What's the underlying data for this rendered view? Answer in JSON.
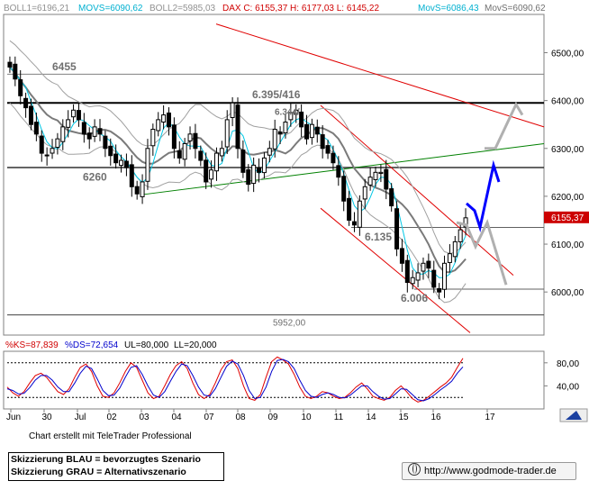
{
  "header": {
    "boll1": "BOLL1=6196,21",
    "movs1": "MOVS=6090,62",
    "boll2": "BOLL2=5985,03",
    "dax": "DAX C: 6155,37 H: 6177,03 L: 6145,22",
    "movs_s": "MovS=6086,43",
    "movs2": "MovS=6090,62"
  },
  "annotations": {
    "level_6455": "6455",
    "level_6395": "6.395/416",
    "level_6260": "6260",
    "level_6135": "6.135",
    "level_6006": "6.006",
    "level_5952": "5952,00",
    "obscured_label": "6.344/"
  },
  "price_tag": "6155,37",
  "oscillator_header": {
    "ks": "%KS=87,839",
    "ds": "%DS=72,654",
    "ul": "UL=80,000",
    "ll": "LL=20,000"
  },
  "footer": {
    "credit": "Chart erstellt mit TeleTrader Professional",
    "legend_line1": "Skizzierung BLAU = bevorzugtes Szenario",
    "legend_line2": "Skizzierung GRAU = Alternativszenario",
    "url": "http://www.godmode-trader.de"
  },
  "colors": {
    "candle": "#000000",
    "bollinger": "#a0a0a0",
    "movs_grey": "#7a7a7a",
    "movs_cyan": "#00c8e6",
    "support_line": "#008000",
    "channel": "#e00000",
    "scenario_blue": "#0000ff",
    "scenario_grey": "#b0b0b0",
    "ks_line": "#e00000",
    "ds_line": "#0000cc"
  },
  "chart_data": [
    {
      "type": "candlestick",
      "title": "DAX",
      "ylim": [
        5910,
        6580
      ],
      "yticks": [
        6000,
        6100,
        6200,
        6300,
        6400,
        6500
      ],
      "ytick_labels": [
        "6000,00",
        "6100,00",
        "6200,00",
        "6300,00",
        "6400,00",
        "6500,00"
      ],
      "xtick_labels": [
        "Jun",
        "30",
        "Jul",
        "02",
        "03",
        "04",
        "07",
        "08",
        "09",
        "10",
        "11",
        "14",
        "15",
        "16",
        "17"
      ],
      "horizontal_levels": [
        6455,
        6395,
        6260,
        6135,
        6006,
        5952
      ],
      "close": [
        6470,
        6445,
        6410,
        6385,
        6350,
        6330,
        6290,
        6285,
        6300,
        6320,
        6345,
        6360,
        6380,
        6360,
        6330,
        6320,
        6345,
        6330,
        6300,
        6285,
        6270,
        6275,
        6260,
        6220,
        6205,
        6230,
        6300,
        6340,
        6360,
        6370,
        6345,
        6300,
        6280,
        6310,
        6330,
        6300,
        6275,
        6230,
        6255,
        6290,
        6300,
        6360,
        6395,
        6300,
        6250,
        6225,
        6265,
        6250,
        6280,
        6300,
        6340,
        6330,
        6355,
        6375,
        6380,
        6345,
        6320,
        6350,
        6330,
        6300,
        6290,
        6270,
        6240,
        6190,
        6150,
        6140,
        6190,
        6220,
        6240,
        6250,
        6250,
        6215,
        6180,
        6090,
        6060,
        6020,
        6030,
        6040,
        6060,
        6050,
        6010,
        6000,
        6060,
        6080,
        6105,
        6130,
        6155
      ]
    },
    {
      "type": "line",
      "title": "Slow Stochastic",
      "ylim": [
        0,
        100
      ],
      "yticks": [
        40,
        80
      ],
      "ytick_labels": [
        "40,00",
        "80,00"
      ],
      "series": [
        {
          "name": "%KS",
          "values": [
            38,
            28,
            22,
            30,
            45,
            58,
            62,
            55,
            42,
            30,
            25,
            35,
            55,
            72,
            78,
            65,
            40,
            22,
            20,
            28,
            45,
            65,
            80,
            72,
            50,
            28,
            18,
            22,
            40,
            60,
            75,
            82,
            70,
            45,
            25,
            18,
            25,
            45,
            68,
            82,
            85,
            70,
            40,
            18,
            15,
            25,
            55,
            82,
            90,
            85,
            78,
            60,
            38,
            22,
            18,
            22,
            30,
            28,
            22,
            18,
            20,
            28,
            38,
            45,
            35,
            22,
            18,
            15,
            20,
            32,
            40,
            30,
            18,
            12,
            15,
            22,
            30,
            38,
            45,
            55,
            72,
            88
          ]
        },
        {
          "name": "%DS",
          "values": [
            35,
            32,
            26,
            27,
            37,
            50,
            58,
            58,
            50,
            38,
            30,
            30,
            45,
            62,
            74,
            70,
            52,
            32,
            23,
            24,
            36,
            55,
            72,
            75,
            60,
            40,
            24,
            20,
            30,
            48,
            65,
            78,
            75,
            58,
            38,
            24,
            22,
            35,
            55,
            74,
            83,
            78,
            58,
            32,
            18,
            20,
            38,
            65,
            84,
            86,
            82,
            70,
            50,
            32,
            22,
            20,
            25,
            28,
            25,
            20,
            19,
            24,
            32,
            40,
            40,
            30,
            22,
            17,
            18,
            26,
            35,
            34,
            25,
            16,
            14,
            18,
            25,
            33,
            40,
            48,
            62,
            73
          ]
        }
      ],
      "horizontal_levels": [
        20,
        80
      ]
    }
  ]
}
